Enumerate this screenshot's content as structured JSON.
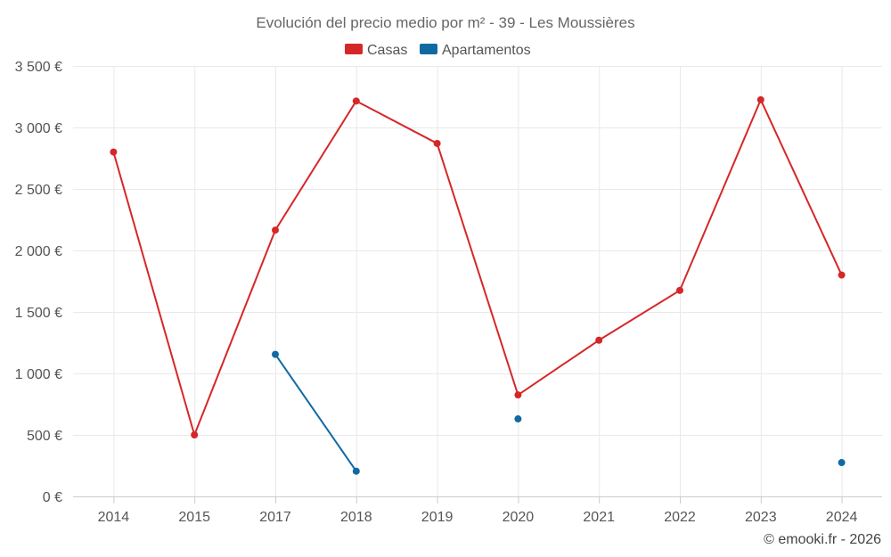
{
  "chart_data": {
    "type": "line",
    "title": "Evolución del precio medio por m² - 39 - Les Moussières",
    "categories": [
      "2014",
      "2015",
      "2017",
      "2018",
      "2019",
      "2020",
      "2021",
      "2022",
      "2023",
      "2024"
    ],
    "series": [
      {
        "name": "Casas",
        "color": "#d62728",
        "values": [
          2800,
          500,
          2165,
          3215,
          2870,
          825,
          1270,
          1675,
          3225,
          1800
        ]
      },
      {
        "name": "Apartamentos",
        "color": "#0f6aa3",
        "values": [
          null,
          null,
          1155,
          205,
          null,
          630,
          null,
          null,
          null,
          275
        ]
      }
    ],
    "ylim": [
      0,
      3500
    ],
    "yticks": [
      0,
      500,
      1000,
      1500,
      2000,
      2500,
      3000,
      3500
    ],
    "ytick_labels": [
      "0 €",
      "500 €",
      "1 000 €",
      "1 500 €",
      "2 000 €",
      "2 500 €",
      "3 000 €",
      "3 500 €"
    ],
    "grid": true,
    "legend": "top-center",
    "credit": "© emooki.fr - 2026"
  }
}
